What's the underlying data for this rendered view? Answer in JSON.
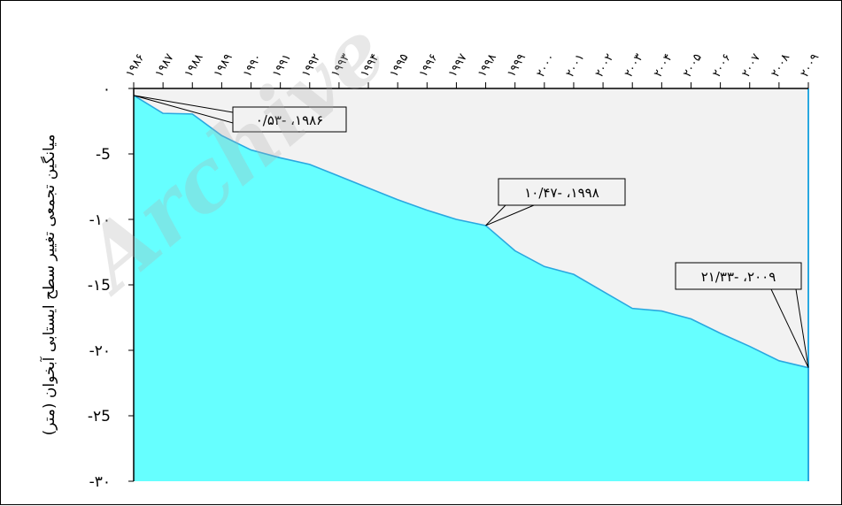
{
  "chart_data": {
    "type": "area",
    "ylabel": "میانگین تجمعی تغییر سطح ایستابی آبخوان (متر)",
    "x": [
      1986,
      1987,
      1988,
      1989,
      1990,
      1991,
      1992,
      1993,
      1994,
      1995,
      1996,
      1997,
      1998,
      1999,
      2000,
      2001,
      2002,
      2003,
      2004,
      2005,
      2006,
      2007,
      2008,
      2009
    ],
    "x_tick_labels": [
      "۱۹۸۶",
      "۱۹۸۷",
      "۱۹۸۸",
      "۱۹۸۹",
      "۱۹۹۰",
      "۱۹۹۱",
      "۱۹۹۲",
      "۱۹۹۳",
      "۱۹۹۴",
      "۱۹۹۵",
      "۱۹۹۶",
      "۱۹۹۷",
      "۱۹۹۸",
      "۱۹۹۹",
      "۲۰۰۰",
      "۲۰۰۱",
      "۲۰۰۲",
      "۲۰۰۳",
      "۲۰۰۴",
      "۲۰۰۵",
      "۲۰۰۶",
      "۲۰۰۷",
      "۲۰۰۸",
      "۲۰۰۹"
    ],
    "series": [
      {
        "values": [
          -0.53,
          -1.9,
          -1.95,
          -3.6,
          -4.7,
          -5.3,
          -5.8,
          -6.7,
          -7.6,
          -8.5,
          -9.3,
          -10.0,
          -10.47,
          -12.4,
          -13.6,
          -14.2,
          -15.5,
          -16.8,
          -17.0,
          -17.6,
          -18.7,
          -19.7,
          -20.8,
          -21.33
        ],
        "color": "#66FFFF",
        "line_color": "#29A8E0"
      }
    ],
    "ylim": [
      -30,
      0
    ],
    "y_ticks": [
      0,
      -5,
      -10,
      -15,
      -20,
      -25,
      -30
    ],
    "y_tick_labels": [
      "۰",
      "-5",
      "-۱۰",
      "-۱5",
      "-۲۰",
      "-۲5",
      "-۳۰"
    ],
    "x_axis_position": "top",
    "grid": false,
    "legend": "none",
    "annotations": [
      {
        "x": 1986,
        "y": -0.53,
        "text": "۱۹۸۶، -۰/۵۳"
      },
      {
        "x": 1998,
        "y": -10.47,
        "text": "۱۹۹۸، -۱۰/۴۷"
      },
      {
        "x": 2009,
        "y": -21.33,
        "text": "۲۰۰۹، -۲۱/۳۳"
      }
    ],
    "plot_background": "#F2F2F2",
    "watermark": "Archive"
  }
}
